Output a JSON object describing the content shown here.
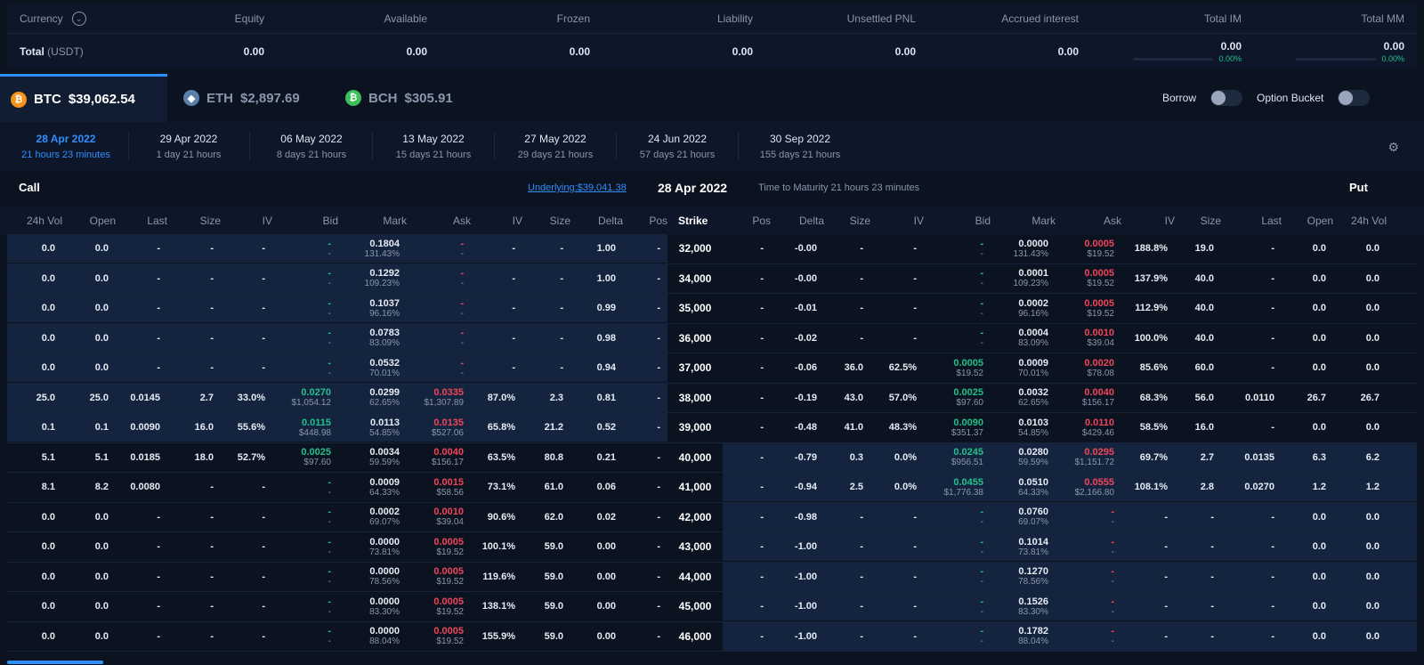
{
  "summary": {
    "headers": [
      "Currency",
      "Equity",
      "Available",
      "Frozen",
      "Liability",
      "Unsettled PNL",
      "Accrued interest",
      "Total IM",
      "Total MM"
    ],
    "currency_label": "Currency",
    "total_label": "Total",
    "total_unit": "(USDT)",
    "values": [
      "0.00",
      "0.00",
      "0.00",
      "0.00",
      "0.00",
      "0.00",
      "0.00",
      "0.00"
    ],
    "im_pct": "0.00%",
    "mm_pct": "0.00%"
  },
  "assets": [
    {
      "symbol": "BTC",
      "price": "$39,062.54",
      "icon": "btc-icon",
      "active": true
    },
    {
      "symbol": "ETH",
      "price": "$2,897.69",
      "icon": "eth-icon",
      "active": false
    },
    {
      "symbol": "BCH",
      "price": "$305.91",
      "icon": "bch-icon",
      "active": false
    }
  ],
  "toggles": {
    "borrow": "Borrow",
    "option_bucket": "Option Bucket"
  },
  "expiries": [
    {
      "date": "28 Apr 2022",
      "time": "21 hours 23 minutes"
    },
    {
      "date": "29 Apr 2022",
      "time": "1 day 21 hours"
    },
    {
      "date": "06 May 2022",
      "time": "8 days 21 hours"
    },
    {
      "date": "13 May 2022",
      "time": "15 days 21 hours"
    },
    {
      "date": "27 May 2022",
      "time": "29 days 21 hours"
    },
    {
      "date": "24 Jun 2022",
      "time": "57 days 21 hours"
    },
    {
      "date": "30 Sep 2022",
      "time": "155 days 21 hours"
    }
  ],
  "board": {
    "call": "Call",
    "put": "Put",
    "underlying": "Underlying:$39,041.38",
    "date": "28 Apr 2022",
    "ttm": "Time to Maturity 21 hours 23 minutes"
  },
  "call_headers": [
    "24h Vol",
    "Open",
    "Last",
    "Size",
    "IV",
    "Bid",
    "Mark",
    "Ask",
    "IV",
    "Size",
    "Delta",
    "Pos"
  ],
  "strike_header": "Strike",
  "put_headers": [
    "Pos",
    "Delta",
    "Size",
    "IV",
    "Bid",
    "Mark",
    "Ask",
    "IV",
    "Size",
    "Last",
    "Open",
    "24h Vol"
  ],
  "rows": [
    {
      "strike": "32,000",
      "itm_call": true,
      "itm_put": false,
      "c": [
        "0.0",
        "0.0",
        "-",
        "-",
        "-",
        [
          "-",
          "-"
        ],
        [
          "0.1804",
          "131.43%"
        ],
        [
          "-",
          "-"
        ],
        "-",
        "-",
        "1.00",
        "-"
      ],
      "p": [
        "-",
        "-0.00",
        "-",
        "-",
        [
          "-",
          "-"
        ],
        [
          "0.0000",
          "131.43%"
        ],
        [
          "0.0005",
          "$19.52"
        ],
        "188.8%",
        "19.0",
        "-",
        "0.0",
        "0.0"
      ]
    },
    {
      "strike": "34,000",
      "itm_call": true,
      "itm_put": false,
      "c": [
        "0.0",
        "0.0",
        "-",
        "-",
        "-",
        [
          "-",
          "-"
        ],
        [
          "0.1292",
          "109.23%"
        ],
        [
          "-",
          "-"
        ],
        "-",
        "-",
        "1.00",
        "-"
      ],
      "p": [
        "-",
        "-0.00",
        "-",
        "-",
        [
          "-",
          "-"
        ],
        [
          "0.0001",
          "109.23%"
        ],
        [
          "0.0005",
          "$19.52"
        ],
        "137.9%",
        "40.0",
        "-",
        "0.0",
        "0.0"
      ]
    },
    {
      "strike": "35,000",
      "itm_call": true,
      "itm_put": false,
      "c": [
        "0.0",
        "0.0",
        "-",
        "-",
        "-",
        [
          "-",
          "-"
        ],
        [
          "0.1037",
          "96.16%"
        ],
        [
          "-",
          "-"
        ],
        "-",
        "-",
        "0.99",
        "-"
      ],
      "p": [
        "-",
        "-0.01",
        "-",
        "-",
        [
          "-",
          "-"
        ],
        [
          "0.0002",
          "96.16%"
        ],
        [
          "0.0005",
          "$19.52"
        ],
        "112.9%",
        "40.0",
        "-",
        "0.0",
        "0.0"
      ]
    },
    {
      "strike": "36,000",
      "itm_call": true,
      "itm_put": false,
      "c": [
        "0.0",
        "0.0",
        "-",
        "-",
        "-",
        [
          "-",
          "-"
        ],
        [
          "0.0783",
          "83.09%"
        ],
        [
          "-",
          "-"
        ],
        "-",
        "-",
        "0.98",
        "-"
      ],
      "p": [
        "-",
        "-0.02",
        "-",
        "-",
        [
          "-",
          "-"
        ],
        [
          "0.0004",
          "83.09%"
        ],
        [
          "0.0010",
          "$39.04"
        ],
        "100.0%",
        "40.0",
        "-",
        "0.0",
        "0.0"
      ]
    },
    {
      "strike": "37,000",
      "itm_call": true,
      "itm_put": false,
      "c": [
        "0.0",
        "0.0",
        "-",
        "-",
        "-",
        [
          "-",
          "-"
        ],
        [
          "0.0532",
          "70.01%"
        ],
        [
          "-",
          "-"
        ],
        "-",
        "-",
        "0.94",
        "-"
      ],
      "p": [
        "-",
        "-0.06",
        "36.0",
        "62.5%",
        [
          "0.0005",
          "$19.52"
        ],
        [
          "0.0009",
          "70.01%"
        ],
        [
          "0.0020",
          "$78.08"
        ],
        "85.6%",
        "60.0",
        "-",
        "0.0",
        "0.0"
      ]
    },
    {
      "strike": "38,000",
      "itm_call": true,
      "itm_put": false,
      "c": [
        "25.0",
        "25.0",
        "0.0145",
        "2.7",
        "33.0%",
        [
          "0.0270",
          "$1,054.12"
        ],
        [
          "0.0299",
          "62.65%"
        ],
        [
          "0.0335",
          "$1,307.89"
        ],
        "87.0%",
        "2.3",
        "0.81",
        "-"
      ],
      "p": [
        "-",
        "-0.19",
        "43.0",
        "57.0%",
        [
          "0.0025",
          "$97.60"
        ],
        [
          "0.0032",
          "62.65%"
        ],
        [
          "0.0040",
          "$156.17"
        ],
        "68.3%",
        "56.0",
        "0.0110",
        "26.7",
        "26.7"
      ]
    },
    {
      "strike": "39,000",
      "itm_call": true,
      "itm_put": false,
      "c": [
        "0.1",
        "0.1",
        "0.0090",
        "16.0",
        "55.6%",
        [
          "0.0115",
          "$448.98"
        ],
        [
          "0.0113",
          "54.85%"
        ],
        [
          "0.0135",
          "$527.06"
        ],
        "65.8%",
        "21.2",
        "0.52",
        "-"
      ],
      "p": [
        "-",
        "-0.48",
        "41.0",
        "48.3%",
        [
          "0.0090",
          "$351.37"
        ],
        [
          "0.0103",
          "54.85%"
        ],
        [
          "0.0110",
          "$429.46"
        ],
        "58.5%",
        "16.0",
        "-",
        "0.0",
        "0.0"
      ]
    },
    {
      "strike": "40,000",
      "itm_call": false,
      "itm_put": true,
      "c": [
        "5.1",
        "5.1",
        "0.0185",
        "18.0",
        "52.7%",
        [
          "0.0025",
          "$97.60"
        ],
        [
          "0.0034",
          "59.59%"
        ],
        [
          "0.0040",
          "$156.17"
        ],
        "63.5%",
        "80.8",
        "0.21",
        "-"
      ],
      "p": [
        "-",
        "-0.79",
        "0.3",
        "0.0%",
        [
          "0.0245",
          "$956.51"
        ],
        [
          "0.0280",
          "59.59%"
        ],
        [
          "0.0295",
          "$1,151.72"
        ],
        "69.7%",
        "2.7",
        "0.0135",
        "6.3",
        "6.2"
      ]
    },
    {
      "strike": "41,000",
      "itm_call": false,
      "itm_put": true,
      "c": [
        "8.1",
        "8.2",
        "0.0080",
        "-",
        "-",
        [
          "-",
          "-"
        ],
        [
          "0.0009",
          "64.33%"
        ],
        [
          "0.0015",
          "$58.56"
        ],
        "73.1%",
        "61.0",
        "0.06",
        "-"
      ],
      "p": [
        "-",
        "-0.94",
        "2.5",
        "0.0%",
        [
          "0.0455",
          "$1,776.38"
        ],
        [
          "0.0510",
          "64.33%"
        ],
        [
          "0.0555",
          "$2,166.80"
        ],
        "108.1%",
        "2.8",
        "0.0270",
        "1.2",
        "1.2"
      ]
    },
    {
      "strike": "42,000",
      "itm_call": false,
      "itm_put": true,
      "c": [
        "0.0",
        "0.0",
        "-",
        "-",
        "-",
        [
          "-",
          "-"
        ],
        [
          "0.0002",
          "69.07%"
        ],
        [
          "0.0010",
          "$39.04"
        ],
        "90.6%",
        "62.0",
        "0.02",
        "-"
      ],
      "p": [
        "-",
        "-0.98",
        "-",
        "-",
        [
          "-",
          "-"
        ],
        [
          "0.0760",
          "69.07%"
        ],
        [
          "-",
          "-"
        ],
        "-",
        "-",
        "-",
        "0.0",
        "0.0"
      ]
    },
    {
      "strike": "43,000",
      "itm_call": false,
      "itm_put": true,
      "c": [
        "0.0",
        "0.0",
        "-",
        "-",
        "-",
        [
          "-",
          "-"
        ],
        [
          "0.0000",
          "73.81%"
        ],
        [
          "0.0005",
          "$19.52"
        ],
        "100.1%",
        "59.0",
        "0.00",
        "-"
      ],
      "p": [
        "-",
        "-1.00",
        "-",
        "-",
        [
          "-",
          "-"
        ],
        [
          "0.1014",
          "73.81%"
        ],
        [
          "-",
          "-"
        ],
        "-",
        "-",
        "-",
        "0.0",
        "0.0"
      ]
    },
    {
      "strike": "44,000",
      "itm_call": false,
      "itm_put": true,
      "c": [
        "0.0",
        "0.0",
        "-",
        "-",
        "-",
        [
          "-",
          "-"
        ],
        [
          "0.0000",
          "78.56%"
        ],
        [
          "0.0005",
          "$19.52"
        ],
        "119.6%",
        "59.0",
        "0.00",
        "-"
      ],
      "p": [
        "-",
        "-1.00",
        "-",
        "-",
        [
          "-",
          "-"
        ],
        [
          "0.1270",
          "78.56%"
        ],
        [
          "-",
          "-"
        ],
        "-",
        "-",
        "-",
        "0.0",
        "0.0"
      ]
    },
    {
      "strike": "45,000",
      "itm_call": false,
      "itm_put": true,
      "c": [
        "0.0",
        "0.0",
        "-",
        "-",
        "-",
        [
          "-",
          "-"
        ],
        [
          "0.0000",
          "83.30%"
        ],
        [
          "0.0005",
          "$19.52"
        ],
        "138.1%",
        "59.0",
        "0.00",
        "-"
      ],
      "p": [
        "-",
        "-1.00",
        "-",
        "-",
        [
          "-",
          "-"
        ],
        [
          "0.1526",
          "83.30%"
        ],
        [
          "-",
          "-"
        ],
        "-",
        "-",
        "-",
        "0.0",
        "0.0"
      ]
    },
    {
      "strike": "46,000",
      "itm_call": false,
      "itm_put": true,
      "c": [
        "0.0",
        "0.0",
        "-",
        "-",
        "-",
        [
          "-",
          "-"
        ],
        [
          "0.0000",
          "88.04%"
        ],
        [
          "0.0005",
          "$19.52"
        ],
        "155.9%",
        "59.0",
        "0.00",
        "-"
      ],
      "p": [
        "-",
        "-1.00",
        "-",
        "-",
        [
          "-",
          "-"
        ],
        [
          "0.1782",
          "88.04%"
        ],
        [
          "-",
          "-"
        ],
        "-",
        "-",
        "-",
        "0.0",
        "0.0"
      ]
    }
  ],
  "colors": {
    "accent": "#2f8fff",
    "bid": "#24c08c",
    "ask": "#f0455a",
    "itm_bg": "#14243f",
    "bg": "#0b1220"
  }
}
